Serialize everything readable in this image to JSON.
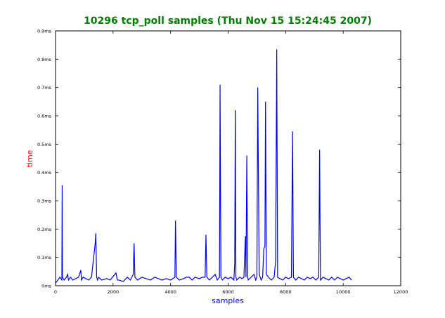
{
  "chart_data": {
    "type": "line",
    "title": "10296 tcp_poll samples (Thu Nov 15 15:24:45 2007)",
    "xlabel": "samples",
    "ylabel": "time",
    "xlim": [
      0,
      12000
    ],
    "ylim": [
      0,
      0.9
    ],
    "x_ticks": [
      0,
      2000,
      4000,
      6000,
      8000,
      10000,
      12000
    ],
    "x_tick_labels": [
      "0",
      "2000",
      "4000",
      "6000",
      "8000",
      "10000",
      "12000"
    ],
    "y_ticks": [
      0,
      0.1,
      0.2,
      0.3,
      0.4,
      0.5,
      0.6,
      0.7,
      0.8,
      0.9
    ],
    "y_tick_labels": [
      "0ms",
      "0.1ms",
      "0.2ms",
      "0.3ms",
      "0.4ms",
      "0.5ms",
      "0.6ms",
      "0.7ms",
      "0.8ms",
      "0.9ms"
    ],
    "grid": false,
    "colors": {
      "title": "#008000",
      "xlabel": "#0000ff",
      "ylabel": "#ff0000",
      "series": "#0000ff"
    },
    "series": [
      {
        "x": [
          0,
          80,
          150,
          220,
          230,
          240,
          300,
          380,
          420,
          450,
          520,
          600,
          700,
          800,
          880,
          900,
          960,
          1050,
          1150,
          1250,
          1380,
          1400,
          1430,
          1460,
          1500,
          1600,
          1780,
          1900,
          2100,
          2150,
          2200,
          2350,
          2500,
          2600,
          2700,
          2730,
          2760,
          2850,
          3000,
          3150,
          3300,
          3450,
          3580,
          3700,
          3850,
          4000,
          4150,
          4170,
          4200,
          4300,
          4450,
          4550,
          4650,
          4750,
          4850,
          5000,
          5100,
          5200,
          5230,
          5260,
          5350,
          5450,
          5550,
          5620,
          5700,
          5720,
          5750,
          5800,
          5900,
          6000,
          6100,
          6200,
          6230,
          6250,
          6270,
          6300,
          6400,
          6480,
          6550,
          6600,
          6620,
          6650,
          6680,
          6700,
          6800,
          6900,
          6960,
          7000,
          7030,
          7080,
          7150,
          7200,
          7240,
          7280,
          7300,
          7330,
          7400,
          7500,
          7600,
          7650,
          7690,
          7720,
          7800,
          7900,
          8000,
          8100,
          8200,
          8240,
          8270,
          8350,
          8450,
          8550,
          8650,
          8750,
          8850,
          8950,
          9050,
          9150,
          9180,
          9210,
          9300,
          9400,
          9500,
          9600,
          9650,
          9700,
          9800,
          9900,
          10000,
          10100,
          10200,
          10296
        ],
        "y": [
          0.01,
          0.02,
          0.03,
          0.02,
          0.355,
          0.03,
          0.02,
          0.03,
          0.04,
          0.02,
          0.03,
          0.02,
          0.025,
          0.03,
          0.055,
          0.02,
          0.03,
          0.025,
          0.02,
          0.03,
          0.15,
          0.185,
          0.03,
          0.02,
          0.03,
          0.02,
          0.025,
          0.02,
          0.045,
          0.02,
          0.02,
          0.015,
          0.03,
          0.02,
          0.04,
          0.15,
          0.03,
          0.02,
          0.03,
          0.025,
          0.02,
          0.03,
          0.025,
          0.02,
          0.025,
          0.02,
          0.03,
          0.23,
          0.03,
          0.02,
          0.025,
          0.03,
          0.03,
          0.02,
          0.03,
          0.025,
          0.03,
          0.03,
          0.18,
          0.03,
          0.02,
          0.03,
          0.04,
          0.02,
          0.03,
          0.71,
          0.03,
          0.02,
          0.03,
          0.025,
          0.03,
          0.02,
          0.08,
          0.62,
          0.03,
          0.02,
          0.03,
          0.025,
          0.03,
          0.175,
          0.03,
          0.46,
          0.03,
          0.02,
          0.03,
          0.04,
          0.02,
          0.03,
          0.7,
          0.04,
          0.02,
          0.03,
          0.13,
          0.14,
          0.65,
          0.04,
          0.03,
          0.02,
          0.03,
          0.085,
          0.835,
          0.03,
          0.025,
          0.02,
          0.03,
          0.025,
          0.03,
          0.545,
          0.03,
          0.02,
          0.03,
          0.025,
          0.02,
          0.03,
          0.025,
          0.03,
          0.02,
          0.03,
          0.48,
          0.02,
          0.03,
          0.025,
          0.02,
          0.03,
          0.025,
          0.02,
          0.03,
          0.025,
          0.02,
          0.025,
          0.03,
          0.02
        ]
      }
    ]
  }
}
